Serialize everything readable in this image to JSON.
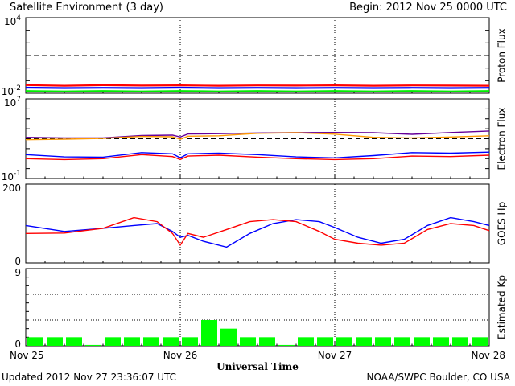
{
  "header": {
    "title": "Satellite Environment (3 day)",
    "begin": "Begin:  2012 Nov 25 0000 UTC"
  },
  "footer": {
    "updated": "Updated 2012 Nov 27 23:36:07 UTC",
    "credit": "NOAA/SWPC Boulder, CO USA"
  },
  "chart_data": [
    {
      "type": "line",
      "ylabel": "Proton Flux",
      "yscale": "log",
      "ylim": [
        0.01,
        10000
      ],
      "yticks": [
        "10^4",
        "10^-2"
      ],
      "threshold": 10,
      "x": [
        0,
        0.25,
        0.5,
        0.75,
        1.0,
        1.25,
        1.5,
        1.75,
        2.0,
        2.25,
        2.5,
        2.75,
        3.0
      ],
      "series": [
        {
          "color": "#ff0000",
          "values": [
            0.045,
            0.04,
            0.044,
            0.041,
            0.043,
            0.04,
            0.042,
            0.041,
            0.043,
            0.04,
            0.042,
            0.041,
            0.04
          ]
        },
        {
          "color": "#0000ff",
          "values": [
            0.028,
            0.026,
            0.027,
            0.026,
            0.028,
            0.026,
            0.027,
            0.026,
            0.027,
            0.026,
            0.027,
            0.026,
            0.027
          ]
        },
        {
          "color": "#00ee00",
          "values": [
            0.015,
            0.014,
            0.015,
            0.014,
            0.015,
            0.014,
            0.015,
            0.014,
            0.015,
            0.014,
            0.015,
            0.014,
            0.015
          ]
        }
      ]
    },
    {
      "type": "line",
      "ylabel": "Electron Flux",
      "yscale": "log",
      "ylim": [
        0.1,
        10000000
      ],
      "yticks": [
        "10^7",
        "10^-1"
      ],
      "threshold": 1000,
      "x": [
        0,
        0.25,
        0.5,
        0.75,
        0.95,
        1.0,
        1.05,
        1.25,
        1.5,
        1.75,
        2.0,
        2.25,
        2.5,
        2.75,
        3.0
      ],
      "series": [
        {
          "color": "#660099",
          "values": [
            1400,
            1200,
            1200,
            2100,
            2300,
            1500,
            3000,
            3200,
            3800,
            4200,
            4300,
            4000,
            2800,
            4200,
            6000
          ]
        },
        {
          "color": "#ff9900",
          "values": [
            800,
            900,
            1100,
            1700,
            1600,
            900,
            1800,
            2000,
            3500,
            4000,
            2900,
            1400,
            1200,
            1500,
            2000
          ]
        },
        {
          "color": "#0000ff",
          "values": [
            25,
            15,
            14,
            40,
            30,
            12,
            30,
            35,
            25,
            15,
            12,
            20,
            40,
            35,
            45
          ]
        },
        {
          "color": "#ff0000",
          "values": [
            10,
            8,
            10,
            25,
            16,
            8,
            18,
            22,
            14,
            10,
            8,
            10,
            18,
            16,
            22
          ]
        }
      ]
    },
    {
      "type": "line",
      "ylabel": "GOES Hp",
      "ylim": [
        0,
        200
      ],
      "yticks": [
        "200",
        "0"
      ],
      "x": [
        0,
        0.25,
        0.5,
        0.7,
        0.85,
        0.95,
        1.0,
        1.05,
        1.15,
        1.3,
        1.45,
        1.6,
        1.75,
        1.9,
        2.0,
        2.15,
        2.3,
        2.45,
        2.6,
        2.75,
        2.9,
        3.0
      ],
      "series": [
        {
          "color": "#0000ff",
          "values": [
            95,
            80,
            88,
            95,
            100,
            80,
            65,
            70,
            55,
            40,
            75,
            100,
            110,
            105,
            90,
            65,
            50,
            60,
            95,
            115,
            105,
            95
          ]
        },
        {
          "color": "#ff0000",
          "values": [
            75,
            76,
            88,
            115,
            105,
            75,
            45,
            75,
            65,
            85,
            105,
            110,
            105,
            80,
            60,
            50,
            45,
            50,
            85,
            100,
            95,
            82
          ]
        }
      ]
    },
    {
      "type": "bar",
      "ylabel": "Estimated Kp",
      "ylim": [
        0,
        9
      ],
      "yticks": [
        "9",
        "0"
      ],
      "color": "#00ff00",
      "values": [
        1,
        1,
        1,
        0,
        1,
        1,
        1,
        1,
        1,
        3,
        2,
        1,
        1,
        0,
        1,
        1,
        1,
        1,
        1,
        1,
        1,
        1,
        1,
        1
      ]
    }
  ],
  "xaxis": {
    "label": "Universal Time",
    "ticks": [
      "Nov 25",
      "Nov 26",
      "Nov 27",
      "Nov 28"
    ]
  }
}
